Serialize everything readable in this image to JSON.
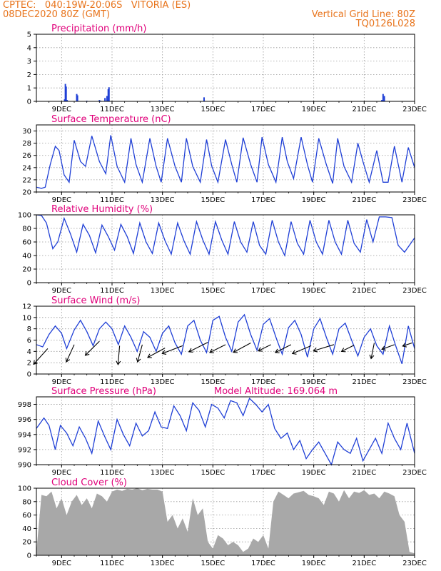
{
  "header": {
    "station": "CPTEC:   040:19W-20:06S   VITORIA (ES)",
    "date": "08DEC2020 80Z (GMT)",
    "grid_note": "Vertical Grid Line: 80Z",
    "code": "TQ0126L028"
  },
  "chart_data": [
    {
      "type": "bar",
      "title": "Precipitation (mm/h)",
      "x_range": [
        0,
        15
      ],
      "ylim": [
        0,
        5
      ],
      "yticks": [
        0,
        1,
        2,
        3,
        4,
        5
      ],
      "xtick_labels": [
        "9DEC",
        "11DEC",
        "13DEC",
        "15DEC",
        "17DEC",
        "19DEC",
        "21DEC",
        "23DEC"
      ],
      "xtick_positions": [
        1,
        3,
        5,
        7,
        9,
        11,
        13,
        15
      ],
      "x": [
        1.12,
        1.15,
        1.18,
        1.22,
        1.6,
        1.63,
        2.0,
        2.5,
        2.55,
        2.72,
        2.8,
        2.85,
        2.88,
        6.65,
        13.7,
        13.75,
        13.8
      ],
      "values": [
        0.15,
        1.3,
        1.1,
        0.1,
        0.55,
        0.45,
        0.05,
        0.1,
        0.05,
        0.25,
        0.4,
        0.9,
        1.05,
        0.3,
        0.1,
        0.55,
        0.4
      ],
      "grid": true,
      "color": "#1f3fd6"
    },
    {
      "type": "line",
      "title": "Surface Temperature (nC)",
      "x_range": [
        0,
        15
      ],
      "ylim": [
        20,
        31
      ],
      "yticks": [
        20,
        22,
        24,
        26,
        28,
        30
      ],
      "xtick_labels": [
        "9DEC",
        "11DEC",
        "13DEC",
        "15DEC",
        "17DEC",
        "19DEC",
        "21DEC",
        "23DEC"
      ],
      "xtick_positions": [
        1,
        3,
        5,
        7,
        9,
        11,
        13,
        15
      ],
      "x": [
        0,
        0.2,
        0.35,
        0.55,
        0.75,
        0.9,
        1.1,
        1.3,
        1.5,
        1.75,
        1.95,
        2.2,
        2.5,
        2.75,
        2.95,
        3.2,
        3.5,
        3.75,
        3.95,
        4.2,
        4.5,
        4.75,
        4.95,
        5.2,
        5.5,
        5.75,
        5.95,
        6.2,
        6.5,
        6.75,
        6.95,
        7.2,
        7.5,
        7.75,
        7.95,
        8.2,
        8.5,
        8.75,
        8.95,
        9.2,
        9.5,
        9.75,
        9.95,
        10.2,
        10.5,
        10.75,
        10.95,
        11.2,
        11.5,
        11.75,
        11.95,
        12.2,
        12.5,
        12.75,
        12.95,
        13.2,
        13.5,
        13.75,
        13.95,
        14.2,
        14.5,
        14.75,
        15
      ],
      "series": [
        {
          "values": [
            20.8,
            20.6,
            20.8,
            24.5,
            27.5,
            26.8,
            22.8,
            21.6,
            28.5,
            25,
            24.2,
            29.2,
            25,
            23,
            29.3,
            24.2,
            21.6,
            28.8,
            24.5,
            21.6,
            28.8,
            24.2,
            21.6,
            28.8,
            24.2,
            21.6,
            28.8,
            24.2,
            21.6,
            28.6,
            24.3,
            21.6,
            28.6,
            24.5,
            21.6,
            28.9,
            24.5,
            21.6,
            29,
            24.5,
            21.6,
            29,
            25,
            22.2,
            29,
            24.5,
            21.6,
            28.8,
            24.5,
            21.4,
            28.8,
            24.2,
            21.6,
            28,
            25,
            21.6,
            26.8,
            21.6,
            21.6,
            27.5,
            21.6,
            27.3,
            24
          ]
        }
      ],
      "grid": true,
      "color": "#1f3fd6"
    },
    {
      "type": "line",
      "title": "Relative Humidity (%)",
      "x_range": [
        0,
        15
      ],
      "ylim": [
        0,
        100
      ],
      "yticks": [
        0,
        20,
        40,
        60,
        80,
        100
      ],
      "xtick_labels": [
        "9DEC",
        "11DEC",
        "13DEC",
        "15DEC",
        "17DEC",
        "19DEC",
        "21DEC",
        "23DEC"
      ],
      "xtick_positions": [
        1,
        3,
        5,
        7,
        9,
        11,
        13,
        15
      ],
      "x": [
        0,
        0.2,
        0.4,
        0.65,
        0.85,
        1.1,
        1.35,
        1.6,
        1.85,
        2.1,
        2.35,
        2.6,
        2.85,
        3.1,
        3.35,
        3.6,
        3.85,
        4.1,
        4.35,
        4.6,
        4.85,
        5.1,
        5.35,
        5.6,
        5.85,
        6.1,
        6.35,
        6.6,
        6.85,
        7.1,
        7.35,
        7.6,
        7.85,
        8.1,
        8.35,
        8.6,
        8.85,
        9.1,
        9.35,
        9.6,
        9.85,
        10.1,
        10.35,
        10.6,
        10.85,
        11.1,
        11.35,
        11.6,
        11.85,
        12.1,
        12.35,
        12.6,
        12.85,
        13.1,
        13.35,
        13.6,
        13.85,
        14.1,
        14.35,
        14.6,
        14.85,
        15
      ],
      "series": [
        {
          "values": [
            100,
            99,
            88,
            50,
            60,
            95,
            72,
            45,
            86,
            70,
            44,
            85,
            68,
            48,
            86,
            68,
            43,
            88,
            60,
            43,
            88,
            62,
            42,
            88,
            62,
            42,
            90,
            63,
            42,
            90,
            63,
            42,
            90,
            60,
            45,
            90,
            55,
            42,
            92,
            60,
            40,
            90,
            58,
            42,
            92,
            60,
            42,
            92,
            60,
            42,
            92,
            58,
            45,
            93,
            60,
            97,
            97,
            96,
            55,
            45,
            58,
            66
          ]
        }
      ],
      "grid": true,
      "color": "#1f3fd6"
    },
    {
      "type": "line",
      "title": "Surface Wind (m/s)",
      "x_range": [
        0,
        15
      ],
      "ylim": [
        0,
        12
      ],
      "yticks": [
        0,
        2,
        4,
        6,
        8,
        10,
        12
      ],
      "xtick_labels": [
        "9DEC",
        "11DEC",
        "13DEC",
        "15DEC",
        "17DEC",
        "19DEC",
        "21DEC",
        "23DEC"
      ],
      "xtick_positions": [
        1,
        3,
        5,
        7,
        9,
        11,
        13,
        15
      ],
      "x": [
        0,
        0.25,
        0.5,
        0.75,
        1,
        1.2,
        1.5,
        1.75,
        2,
        2.25,
        2.5,
        2.75,
        3,
        3.25,
        3.5,
        3.75,
        4,
        4.25,
        4.5,
        4.75,
        5,
        5.25,
        5.5,
        5.75,
        6,
        6.25,
        6.5,
        6.75,
        7,
        7.25,
        7.5,
        7.75,
        8,
        8.25,
        8.5,
        8.75,
        9,
        9.25,
        9.5,
        9.75,
        10,
        10.25,
        10.5,
        10.75,
        11,
        11.25,
        11.5,
        11.75,
        12,
        12.25,
        12.5,
        12.75,
        13,
        13.25,
        13.5,
        13.75,
        14,
        14.25,
        14.5,
        14.75,
        15
      ],
      "series": [
        {
          "values": [
            5.2,
            4.8,
            7,
            8.5,
            7.2,
            4.5,
            7.8,
            9.5,
            7.5,
            5,
            8,
            9.2,
            8,
            5.2,
            8.5,
            6.5,
            4,
            7.5,
            6.5,
            4,
            7.2,
            8.5,
            5.5,
            3.5,
            8.5,
            9.5,
            6,
            3.8,
            9.5,
            10.2,
            6.5,
            4,
            9.2,
            10.5,
            7,
            4.2,
            8.8,
            9.8,
            6.5,
            3.5,
            8.2,
            9.5,
            7,
            3,
            8,
            9.8,
            6.5,
            3.5,
            8,
            9,
            6,
            3.2,
            6.5,
            8,
            5,
            3.5,
            8.5,
            5,
            1.8,
            8.5,
            4.5
          ]
        }
      ],
      "grid": true,
      "color": "#1f3fd6",
      "wind_vectors": [
        {
          "x": 0.45,
          "y": 4.5,
          "u": -0.9,
          "v": -1.0
        },
        {
          "x": 1.5,
          "y": 5.2,
          "u": -0.5,
          "v": -1.1
        },
        {
          "x": 2.5,
          "y": 5.8,
          "u": -0.9,
          "v": -0.9
        },
        {
          "x": 3.3,
          "y": 5.0,
          "u": -0.1,
          "v": -1.2
        },
        {
          "x": 4.2,
          "y": 5.2,
          "u": -0.3,
          "v": -1.1
        },
        {
          "x": 5.1,
          "y": 4.6,
          "u": -1.1,
          "v": -0.6
        },
        {
          "x": 5.8,
          "y": 5.0,
          "u": -1.3,
          "v": -0.5
        },
        {
          "x": 6.8,
          "y": 5.6,
          "u": -1.2,
          "v": -0.6
        },
        {
          "x": 7.5,
          "y": 5.2,
          "u": -1.0,
          "v": -0.5
        },
        {
          "x": 8.5,
          "y": 5.5,
          "u": -1.1,
          "v": -0.6
        },
        {
          "x": 9.3,
          "y": 5.2,
          "u": -0.8,
          "v": -0.4
        },
        {
          "x": 10.1,
          "y": 5.2,
          "u": -1.0,
          "v": -0.5
        },
        {
          "x": 10.9,
          "y": 5.0,
          "u": -1.2,
          "v": -0.5
        },
        {
          "x": 11.8,
          "y": 5.2,
          "u": -1.3,
          "v": -0.4
        },
        {
          "x": 12.6,
          "y": 5.1,
          "u": -0.8,
          "v": -0.4
        },
        {
          "x": 13.4,
          "y": 5.5,
          "u": -0.2,
          "v": -1.0
        },
        {
          "x": 14.2,
          "y": 5.2,
          "u": -0.8,
          "v": -0.3
        },
        {
          "x": 14.9,
          "y": 5.5,
          "u": -0.6,
          "v": -0.2
        }
      ]
    },
    {
      "type": "line",
      "title": "Surface Pressure (hPa)",
      "annotation": "Model Altitude: 169.064 m",
      "x_range": [
        0,
        15
      ],
      "ylim": [
        990,
        999
      ],
      "yticks": [
        990,
        992,
        994,
        996,
        998
      ],
      "xtick_labels": [
        "9DEC",
        "11DEC",
        "13DEC",
        "15DEC",
        "17DEC",
        "19DEC",
        "21DEC",
        "23DEC"
      ],
      "xtick_positions": [
        1,
        3,
        5,
        7,
        9,
        11,
        13,
        15
      ],
      "x": [
        0,
        0.3,
        0.5,
        0.75,
        0.95,
        1.2,
        1.45,
        1.7,
        1.95,
        2.2,
        2.45,
        2.7,
        2.95,
        3.2,
        3.45,
        3.7,
        3.95,
        4.2,
        4.45,
        4.7,
        4.95,
        5.2,
        5.45,
        5.7,
        5.95,
        6.2,
        6.45,
        6.7,
        6.95,
        7.2,
        7.45,
        7.7,
        7.95,
        8.2,
        8.45,
        8.7,
        8.95,
        9.2,
        9.45,
        9.7,
        9.95,
        10.2,
        10.45,
        10.7,
        10.95,
        11.2,
        11.45,
        11.7,
        11.95,
        12.2,
        12.45,
        12.7,
        12.95,
        13.2,
        13.45,
        13.7,
        13.95,
        14.2,
        14.45,
        14.7,
        15
      ],
      "series": [
        {
          "values": [
            994.8,
            996.2,
            995.2,
            992,
            995.2,
            994.2,
            992.5,
            995,
            993.5,
            991.5,
            995.8,
            993.8,
            992,
            996,
            994,
            992.5,
            995.5,
            993.8,
            994.5,
            997,
            995,
            994.8,
            997.8,
            996.5,
            994.5,
            998.2,
            997.2,
            995,
            998,
            997.5,
            996.2,
            998.5,
            998.2,
            996.5,
            998.8,
            998,
            997,
            998,
            994.8,
            993.5,
            994.2,
            992,
            993.2,
            990.8,
            992,
            993,
            991.5,
            990,
            993,
            992,
            991.5,
            993.5,
            990.5,
            992,
            993.5,
            991.5,
            995.5,
            993.5,
            992,
            995.5,
            991.5
          ]
        }
      ],
      "grid": true,
      "color": "#1f3fd6"
    },
    {
      "type": "area",
      "title": "Cloud Cover (%)",
      "x_range": [
        0,
        15
      ],
      "ylim": [
        0,
        100
      ],
      "yticks": [
        0,
        20,
        40,
        60,
        80,
        100
      ],
      "xtick_labels": [
        "9DEC",
        "11DEC",
        "13DEC",
        "15DEC",
        "17DEC",
        "19DEC",
        "21DEC",
        "23DEC"
      ],
      "xtick_positions": [
        1,
        3,
        5,
        7,
        9,
        11,
        13,
        15
      ],
      "x": [
        0,
        0.2,
        0.4,
        0.6,
        0.8,
        1.0,
        1.2,
        1.4,
        1.6,
        1.8,
        2.0,
        2.2,
        2.4,
        2.6,
        2.8,
        3.0,
        3.2,
        3.4,
        3.6,
        3.8,
        4.0,
        4.2,
        4.4,
        4.6,
        4.8,
        5.0,
        5.2,
        5.4,
        5.6,
        5.8,
        6.0,
        6.2,
        6.4,
        6.6,
        6.8,
        7.0,
        7.2,
        7.4,
        7.6,
        7.8,
        8.0,
        8.2,
        8.4,
        8.6,
        8.8,
        9.0,
        9.2,
        9.4,
        9.6,
        9.8,
        10.0,
        10.2,
        10.4,
        10.6,
        10.8,
        11.0,
        11.2,
        11.4,
        11.6,
        11.8,
        12.0,
        12.2,
        12.4,
        12.6,
        12.8,
        13.0,
        13.2,
        13.4,
        13.6,
        13.8,
        14.0,
        14.2,
        14.4,
        14.6,
        14.8,
        15.0
      ],
      "series": [
        {
          "values": [
            5,
            90,
            88,
            95,
            70,
            85,
            60,
            80,
            90,
            75,
            85,
            70,
            92,
            88,
            80,
            95,
            98,
            96,
            99,
            98,
            100,
            97,
            99,
            98,
            98,
            95,
            50,
            60,
            40,
            55,
            35,
            85,
            60,
            70,
            20,
            10,
            30,
            25,
            15,
            20,
            15,
            5,
            10,
            25,
            20,
            30,
            10,
            80,
            95,
            90,
            85,
            92,
            94,
            96,
            90,
            88,
            85,
            75,
            95,
            92,
            80,
            97,
            85,
            95,
            93,
            97,
            90,
            92,
            85,
            95,
            92,
            88,
            60,
            50,
            5,
            3
          ]
        }
      ],
      "grid": true,
      "color": "#a8a8a8"
    }
  ]
}
